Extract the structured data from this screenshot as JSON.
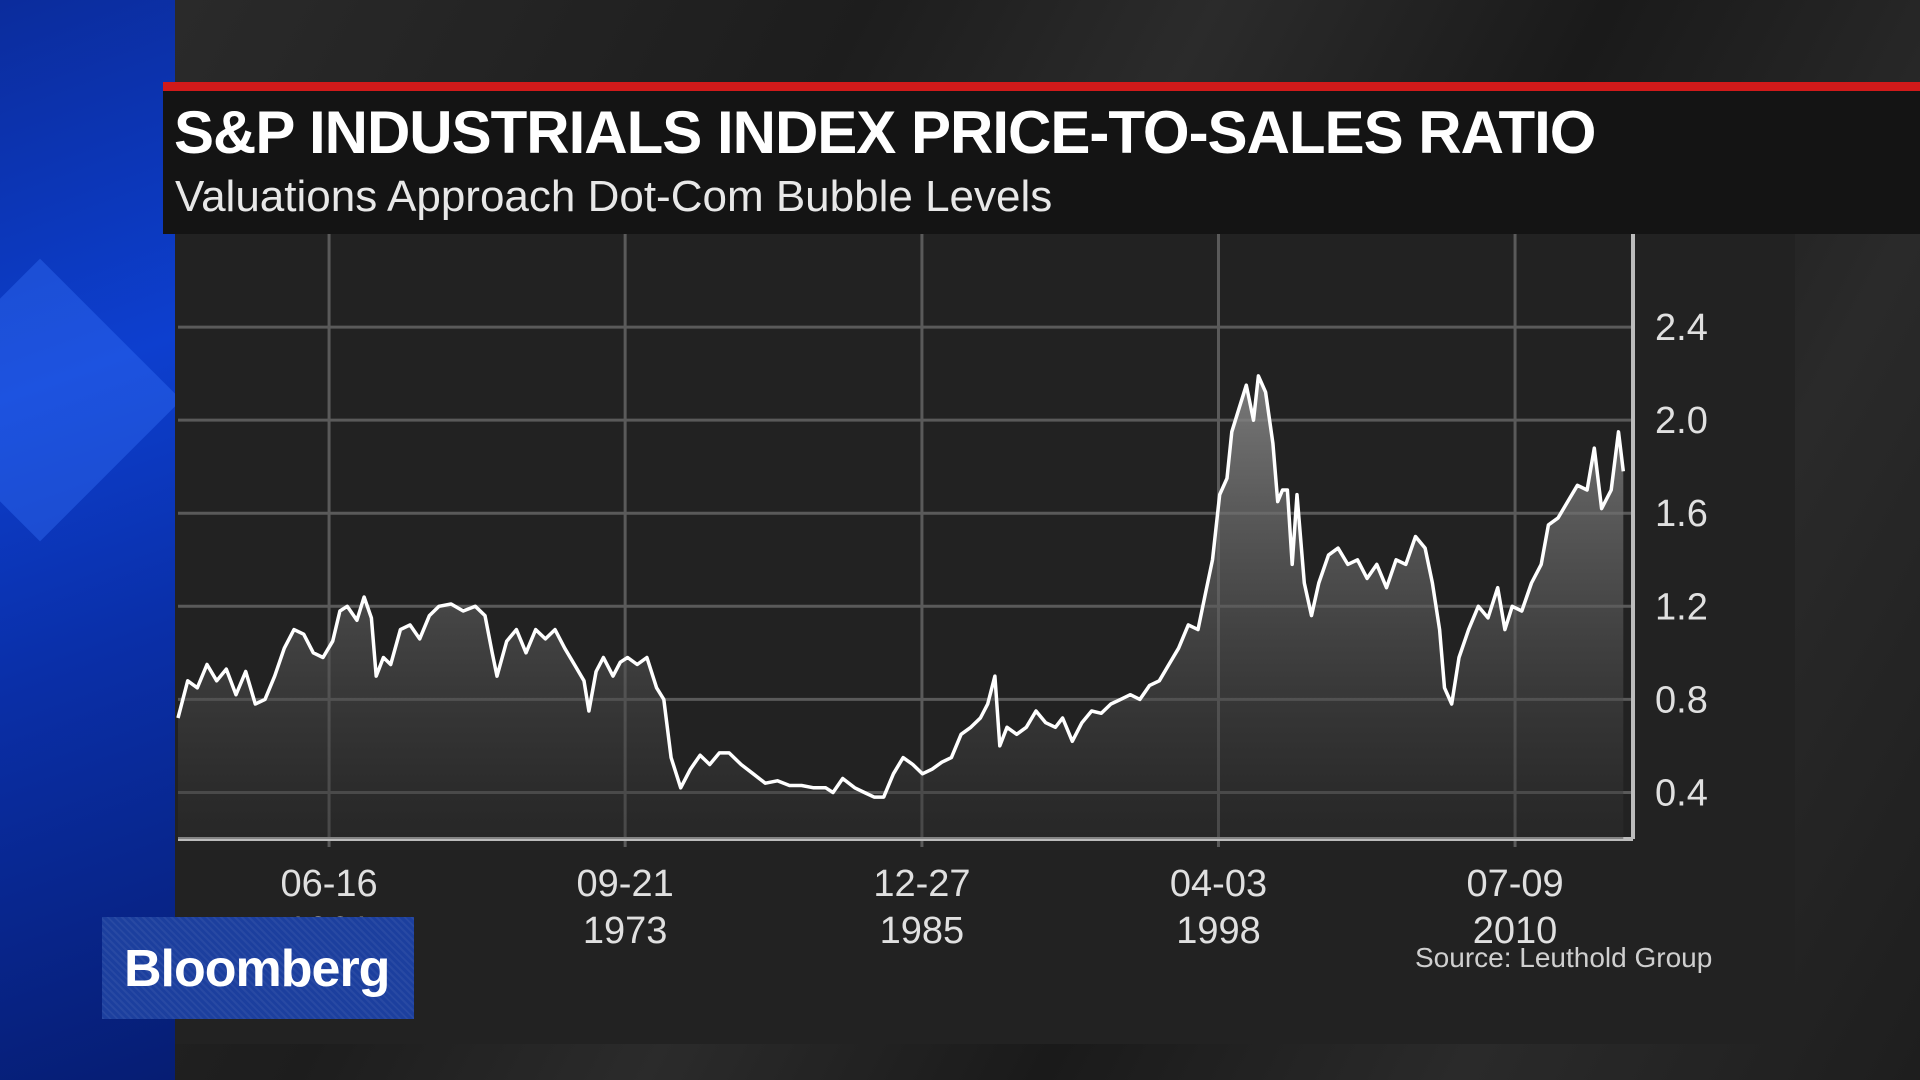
{
  "header": {
    "title": "S&P INDUSTRIALS INDEX PRICE-TO-SALES RATIO",
    "subtitle": "Valuations Approach Dot-Com Bubble Levels"
  },
  "source": "Source: Leuthold Group",
  "logo": "Bloomberg",
  "colors": {
    "accent_red": "#d11a1a",
    "line": "#ffffff",
    "brand_blue": "#1c3f9e"
  },
  "chart_data": {
    "type": "area",
    "title": "S&P INDUSTRIALS INDEX PRICE-TO-SALES RATIO",
    "subtitle": "Valuations Approach Dot-Com Bubble Levels",
    "xlabel": "",
    "ylabel": "",
    "ylim": [
      0.2,
      2.8
    ],
    "xlim": [
      1956.2,
      2016.4
    ],
    "y_ticks": [
      "0.4",
      "0.8",
      "1.2",
      "1.6",
      "2.0",
      "2.4"
    ],
    "x_ticks": [
      {
        "date": "06-16",
        "year": "1961"
      },
      {
        "date": "09-21",
        "year": "1973"
      },
      {
        "date": "12-27",
        "year": "1985"
      },
      {
        "date": "04-03",
        "year": "1998"
      },
      {
        "date": "07-09",
        "year": "2010"
      }
    ],
    "grid": true,
    "y_axis_side": "right",
    "series": [
      {
        "values": [
          [
            1956.2,
            0.72
          ],
          [
            1956.6,
            0.88
          ],
          [
            1957.0,
            0.85
          ],
          [
            1957.4,
            0.95
          ],
          [
            1957.8,
            0.88
          ],
          [
            1958.2,
            0.93
          ],
          [
            1958.6,
            0.82
          ],
          [
            1959.0,
            0.92
          ],
          [
            1959.4,
            0.78
          ],
          [
            1959.8,
            0.8
          ],
          [
            1960.2,
            0.9
          ],
          [
            1960.6,
            1.02
          ],
          [
            1961.0,
            1.1
          ],
          [
            1961.4,
            1.08
          ],
          [
            1961.8,
            1.0
          ],
          [
            1962.2,
            0.98
          ],
          [
            1962.6,
            1.05
          ],
          [
            1962.9,
            1.18
          ],
          [
            1963.2,
            1.2
          ],
          [
            1963.6,
            1.14
          ],
          [
            1963.9,
            1.24
          ],
          [
            1964.2,
            1.15
          ],
          [
            1964.4,
            0.9
          ],
          [
            1964.7,
            0.98
          ],
          [
            1965.0,
            0.95
          ],
          [
            1965.4,
            1.1
          ],
          [
            1965.8,
            1.12
          ],
          [
            1966.2,
            1.06
          ],
          [
            1966.6,
            1.16
          ],
          [
            1967.0,
            1.2
          ],
          [
            1967.5,
            1.21
          ],
          [
            1968.0,
            1.18
          ],
          [
            1968.5,
            1.2
          ],
          [
            1968.9,
            1.16
          ],
          [
            1969.2,
            1.0
          ],
          [
            1969.4,
            0.9
          ],
          [
            1969.8,
            1.05
          ],
          [
            1970.2,
            1.1
          ],
          [
            1970.6,
            1.0
          ],
          [
            1971.0,
            1.1
          ],
          [
            1971.4,
            1.06
          ],
          [
            1971.8,
            1.1
          ],
          [
            1972.2,
            1.02
          ],
          [
            1972.6,
            0.95
          ],
          [
            1973.0,
            0.88
          ],
          [
            1973.2,
            0.75
          ],
          [
            1973.5,
            0.92
          ],
          [
            1973.8,
            0.98
          ],
          [
            1974.2,
            0.9
          ],
          [
            1974.5,
            0.96
          ],
          [
            1974.8,
            0.98
          ],
          [
            1975.2,
            0.95
          ],
          [
            1975.6,
            0.98
          ],
          [
            1976.0,
            0.85
          ],
          [
            1976.3,
            0.8
          ],
          [
            1976.6,
            0.55
          ],
          [
            1977.0,
            0.42
          ],
          [
            1977.4,
            0.5
          ],
          [
            1977.8,
            0.56
          ],
          [
            1978.2,
            0.52
          ],
          [
            1978.6,
            0.57
          ],
          [
            1979.0,
            0.57
          ],
          [
            1979.5,
            0.52
          ],
          [
            1980.0,
            0.48
          ],
          [
            1980.5,
            0.44
          ],
          [
            1981.0,
            0.45
          ],
          [
            1981.5,
            0.43
          ],
          [
            1982.0,
            0.43
          ],
          [
            1982.5,
            0.42
          ],
          [
            1983.0,
            0.42
          ],
          [
            1983.3,
            0.4
          ],
          [
            1983.7,
            0.46
          ],
          [
            1984.2,
            0.42
          ],
          [
            1984.6,
            0.4
          ],
          [
            1985.0,
            0.38
          ],
          [
            1985.4,
            0.38
          ],
          [
            1985.8,
            0.48
          ],
          [
            1986.2,
            0.55
          ],
          [
            1986.6,
            0.52
          ],
          [
            1987.0,
            0.48
          ],
          [
            1987.4,
            0.5
          ],
          [
            1987.8,
            0.53
          ],
          [
            1988.2,
            0.55
          ],
          [
            1988.6,
            0.65
          ],
          [
            1989.0,
            0.68
          ],
          [
            1989.4,
            0.72
          ],
          [
            1989.7,
            0.78
          ],
          [
            1990.0,
            0.9
          ],
          [
            1990.2,
            0.6
          ],
          [
            1990.5,
            0.68
          ],
          [
            1990.9,
            0.65
          ],
          [
            1991.3,
            0.68
          ],
          [
            1991.7,
            0.75
          ],
          [
            1992.1,
            0.7
          ],
          [
            1992.5,
            0.68
          ],
          [
            1992.8,
            0.72
          ],
          [
            1993.2,
            0.62
          ],
          [
            1993.6,
            0.7
          ],
          [
            1994.0,
            0.75
          ],
          [
            1994.4,
            0.74
          ],
          [
            1994.8,
            0.78
          ],
          [
            1995.2,
            0.8
          ],
          [
            1995.6,
            0.82
          ],
          [
            1996.0,
            0.8
          ],
          [
            1996.4,
            0.86
          ],
          [
            1996.8,
            0.88
          ],
          [
            1997.2,
            0.95
          ],
          [
            1997.6,
            1.02
          ],
          [
            1998.0,
            1.12
          ],
          [
            1998.4,
            1.1
          ],
          [
            1998.7,
            1.25
          ],
          [
            1999.0,
            1.4
          ],
          [
            1999.3,
            1.68
          ],
          [
            1999.6,
            1.75
          ],
          [
            1999.8,
            1.95
          ],
          [
            2000.1,
            2.05
          ],
          [
            2000.4,
            2.15
          ],
          [
            2000.7,
            2.0
          ],
          [
            2000.9,
            2.19
          ],
          [
            2001.2,
            2.12
          ],
          [
            2001.5,
            1.9
          ],
          [
            2001.7,
            1.65
          ],
          [
            2001.9,
            1.7
          ],
          [
            2002.1,
            1.7
          ],
          [
            2002.3,
            1.38
          ],
          [
            2002.5,
            1.68
          ],
          [
            2002.8,
            1.3
          ],
          [
            2003.1,
            1.16
          ],
          [
            2003.4,
            1.3
          ],
          [
            2003.8,
            1.42
          ],
          [
            2004.2,
            1.45
          ],
          [
            2004.6,
            1.38
          ],
          [
            2005.0,
            1.4
          ],
          [
            2005.4,
            1.32
          ],
          [
            2005.8,
            1.38
          ],
          [
            2006.2,
            1.28
          ],
          [
            2006.6,
            1.4
          ],
          [
            2007.0,
            1.38
          ],
          [
            2007.4,
            1.5
          ],
          [
            2007.8,
            1.45
          ],
          [
            2008.1,
            1.3
          ],
          [
            2008.4,
            1.1
          ],
          [
            2008.6,
            0.85
          ],
          [
            2008.9,
            0.78
          ],
          [
            2009.2,
            0.98
          ],
          [
            2009.6,
            1.1
          ],
          [
            2010.0,
            1.2
          ],
          [
            2010.4,
            1.15
          ],
          [
            2010.8,
            1.28
          ],
          [
            2011.1,
            1.1
          ],
          [
            2011.4,
            1.2
          ],
          [
            2011.8,
            1.18
          ],
          [
            2012.2,
            1.3
          ],
          [
            2012.6,
            1.38
          ],
          [
            2012.9,
            1.55
          ],
          [
            2013.3,
            1.58
          ],
          [
            2013.7,
            1.65
          ],
          [
            2014.1,
            1.72
          ],
          [
            2014.5,
            1.7
          ],
          [
            2014.8,
            1.88
          ],
          [
            2015.1,
            1.62
          ],
          [
            2015.5,
            1.7
          ],
          [
            2015.8,
            1.95
          ],
          [
            2016.0,
            1.78
          ]
        ]
      }
    ]
  }
}
